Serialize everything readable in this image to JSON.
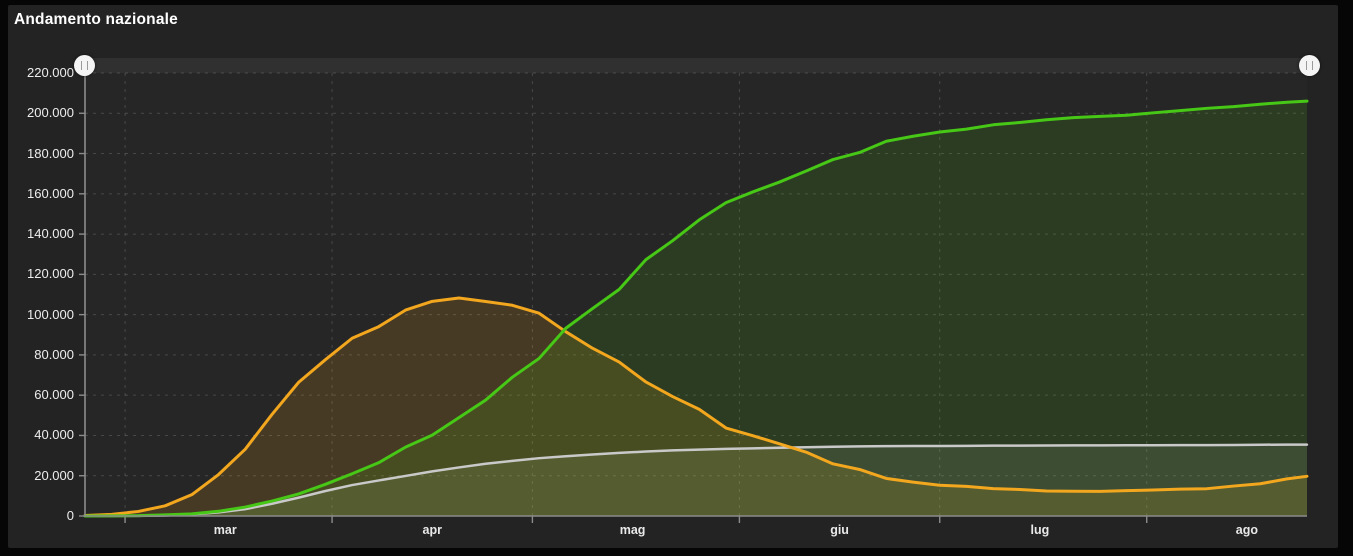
{
  "title": "Andamento nazionale",
  "colors": {
    "page_bg": "#060606",
    "card_bg": "#232323",
    "plot_bg": "#262626",
    "slider_track": "#303030",
    "slider_handle": "#f4f4f4",
    "slider_grip": "#9a9a9a",
    "axis": "#8c8c8c",
    "grid": "rgba(255,255,255,0.16)",
    "tick_label": "#ededed",
    "green_line": "#47c716",
    "orange_line": "#f2a71e",
    "gray_line": "#c9c9c9"
  },
  "slider": {
    "left_handle_icon": "drag-handle-icon",
    "right_handle_icon": "drag-handle-icon"
  },
  "chart_data": {
    "type": "area-line",
    "title": "Andamento nazionale",
    "grid": true,
    "legend": "none visible",
    "y_min": 0,
    "y_max": 220000,
    "y_tick_step": 20000,
    "y_tick_labels": [
      "0",
      "20.000",
      "40.000",
      "60.000",
      "80.000",
      "100.000",
      "120.000",
      "140.000",
      "160.000",
      "180.000",
      "200.000",
      "220.000"
    ],
    "x_domain_days": [
      0,
      183
    ],
    "month_tick_days": [
      6,
      37,
      67,
      98,
      128,
      159
    ],
    "month_labels": [
      {
        "label": "mar",
        "day": 21
      },
      {
        "label": "apr",
        "day": 52
      },
      {
        "label": "mag",
        "day": 82
      },
      {
        "label": "giu",
        "day": 113
      },
      {
        "label": "lug",
        "day": 143
      },
      {
        "label": "ago",
        "day": 174
      }
    ],
    "days": [
      0,
      4,
      8,
      12,
      16,
      20,
      24,
      28,
      32,
      36,
      40,
      44,
      48,
      52,
      56,
      60,
      64,
      68,
      72,
      76,
      80,
      84,
      88,
      92,
      96,
      100,
      104,
      108,
      112,
      116,
      120,
      124,
      128,
      132,
      136,
      140,
      144,
      148,
      152,
      156,
      160,
      164,
      168,
      172,
      176,
      180,
      183
    ],
    "series": [
      {
        "id": "gray",
        "color": "#c9c9c9",
        "fill": "rgba(205,205,205,0.12)",
        "line_width": 2.5,
        "values": [
          7,
          21,
          79,
          233,
          827,
          1809,
          3405,
          6077,
          9134,
          12428,
          15362,
          17669,
          19899,
          22170,
          24114,
          25969,
          27359,
          28710,
          29684,
          30560,
          31368,
          32007,
          32616,
          32955,
          33340,
          33601,
          33899,
          34167,
          34405,
          34561,
          34675,
          34738,
          34788,
          34854,
          34926,
          34954,
          35028,
          35073,
          35102,
          35123,
          35166,
          35187,
          35203,
          35231,
          35405,
          35430,
          35441
        ]
      },
      {
        "id": "orange",
        "color": "#f2a71e",
        "fill": "rgba(243,166,30,0.16)",
        "line_width": 3,
        "values": [
          221,
          821,
          2263,
          5061,
          10590,
          20603,
          33190,
          50418,
          66414,
          77635,
          88274,
          94067,
          102253,
          106607,
          108257,
          106527,
          104657,
          100704,
          91528,
          83324,
          76440,
          66553,
          59322,
          52942,
          43691,
          39893,
          35877,
          31710,
          25909,
          23101,
          18655,
          16836,
          15255,
          14709,
          13595,
          13157,
          12440,
          12322,
          12248,
          12616,
          12924,
          13368,
          13561,
          14867,
          16014,
          18438,
          19714
        ]
      },
      {
        "id": "green",
        "color": "#47c716",
        "fill": "rgba(76,200,22,0.14)",
        "line_width": 3,
        "values": [
          1,
          46,
          160,
          589,
          1045,
          2335,
          4440,
          7432,
          10950,
          15729,
          20996,
          26491,
          34211,
          40164,
          48877,
          57576,
          68941,
          78249,
          93245,
          103031,
          112541,
          127326,
          136720,
          147101,
          155633,
          160938,
          165837,
          171338,
          177010,
          180544,
          186111,
          188584,
          190717,
          192108,
          194273,
          195441,
          196806,
          197842,
          198446,
          199031,
          200229,
          201323,
          202461,
          203326,
          204506,
          205470,
          206015
        ]
      }
    ]
  }
}
